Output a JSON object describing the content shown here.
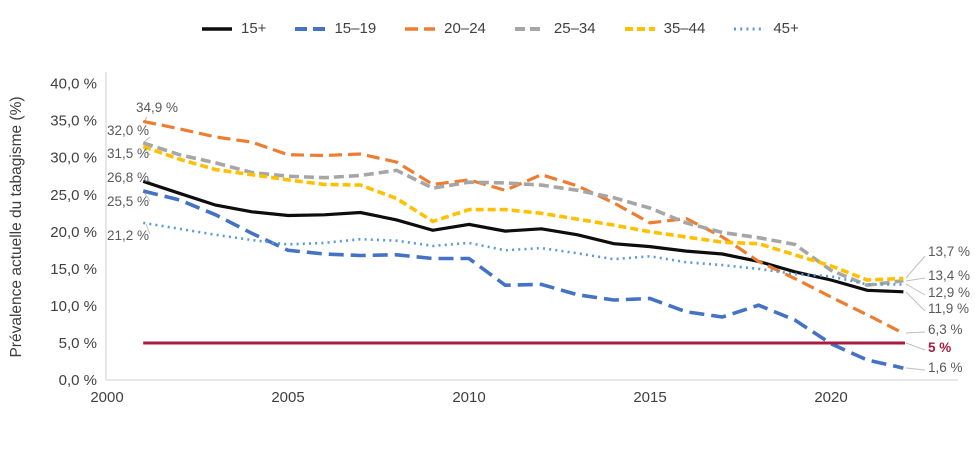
{
  "y_axis": {
    "title": "Prévalence actuelle du tabagisme (%)",
    "ticks": [
      {
        "value": 0,
        "label": "0,0 %"
      },
      {
        "value": 5,
        "label": "5,0 %"
      },
      {
        "value": 10,
        "label": "10,0 %"
      },
      {
        "value": 15,
        "label": "15,0 %"
      },
      {
        "value": 20,
        "label": "20,0 %"
      },
      {
        "value": 25,
        "label": "25,0 %"
      },
      {
        "value": 30,
        "label": "30,0 %"
      },
      {
        "value": 35,
        "label": "35,0 %"
      },
      {
        "value": 40,
        "label": "40,0 %"
      }
    ]
  },
  "x_axis": {
    "ticks": [
      {
        "value": 2000,
        "label": "2000"
      },
      {
        "value": 2005,
        "label": "2005"
      },
      {
        "value": 2010,
        "label": "2010"
      },
      {
        "value": 2015,
        "label": "2015"
      },
      {
        "value": 2020,
        "label": "2020"
      }
    ]
  },
  "chart_data": {
    "type": "line",
    "title": "",
    "xlabel": "",
    "ylabel": "Prévalence actuelle du tabagisme (%)",
    "xlim": [
      2000,
      2023.5
    ],
    "ylim": [
      0,
      40
    ],
    "grid": false,
    "legend_position": "top",
    "x": [
      2001,
      2002,
      2003,
      2004,
      2005,
      2006,
      2007,
      2008,
      2009,
      2010,
      2011,
      2012,
      2013,
      2014,
      2015,
      2016,
      2017,
      2018,
      2019,
      2020,
      2021,
      2022
    ],
    "series": [
      {
        "name": "15+",
        "color": "#0d0d0d",
        "style": "solid",
        "values": [
          26.8,
          25.2,
          23.6,
          22.7,
          22.2,
          22.3,
          22.6,
          21.6,
          20.2,
          21.0,
          20.1,
          20.4,
          19.6,
          18.4,
          18.0,
          17.4,
          17.0,
          16.0,
          14.6,
          13.5,
          12.1,
          11.9
        ],
        "start_label": "26,8 %",
        "end_label": "11,9 %"
      },
      {
        "name": "15–19",
        "color": "#4472C4",
        "style": "long-dash",
        "values": [
          25.5,
          24.3,
          22.3,
          19.8,
          17.5,
          17.0,
          16.8,
          16.9,
          16.4,
          16.4,
          12.8,
          12.9,
          11.5,
          10.8,
          11.0,
          9.2,
          8.5,
          10.1,
          8.1,
          4.9,
          2.7,
          1.6
        ],
        "start_label": "25,5 %",
        "end_label": "1,6 %"
      },
      {
        "name": "20–24",
        "color": "#ED7D31",
        "style": "dash",
        "values": [
          34.9,
          33.9,
          32.8,
          32.1,
          30.4,
          30.3,
          30.5,
          29.4,
          26.4,
          27.0,
          25.6,
          27.7,
          26.2,
          23.9,
          21.2,
          21.8,
          19.3,
          16.0,
          13.7,
          11.2,
          8.8,
          6.3
        ],
        "start_label": "34,9 %",
        "end_label": "6,3 %"
      },
      {
        "name": "25–34",
        "color": "#A6A6A6",
        "style": "med-dash",
        "values": [
          32.0,
          30.4,
          29.3,
          28.0,
          27.5,
          27.3,
          27.6,
          28.3,
          25.9,
          26.7,
          26.6,
          26.3,
          25.6,
          24.6,
          23.2,
          21.2,
          19.9,
          19.2,
          18.3,
          14.8,
          12.8,
          13.4
        ],
        "start_label": "32,0 %",
        "end_label": "13,4 %"
      },
      {
        "name": "35–44",
        "color": "#FFC000",
        "style": "short-dash",
        "values": [
          31.5,
          29.8,
          28.4,
          27.7,
          27.0,
          26.4,
          26.3,
          24.5,
          21.4,
          23.0,
          23.0,
          22.5,
          21.7,
          20.9,
          20.0,
          19.3,
          18.6,
          18.4,
          16.9,
          15.4,
          13.5,
          13.7
        ],
        "start_label": "31,5 %",
        "end_label": "13,7 %"
      },
      {
        "name": "45+",
        "color": "#5B9BD5",
        "style": "dot",
        "values": [
          21.2,
          20.4,
          19.6,
          18.9,
          18.3,
          18.5,
          19.0,
          18.8,
          18.1,
          18.5,
          17.5,
          17.8,
          17.1,
          16.3,
          16.7,
          15.9,
          15.5,
          15.0,
          14.3,
          14.0,
          12.9,
          12.9
        ],
        "start_label": "21,2 %",
        "end_label": "12,9 %"
      }
    ],
    "target_line": {
      "value": 5,
      "label": "5 %",
      "color": "#A81D3B"
    }
  },
  "colors": {
    "axis": "#D9D9D9",
    "leader": "#BFBFBF",
    "annotation_text": "#595959",
    "tick_text": "#404040",
    "target": "#A81D3B"
  }
}
